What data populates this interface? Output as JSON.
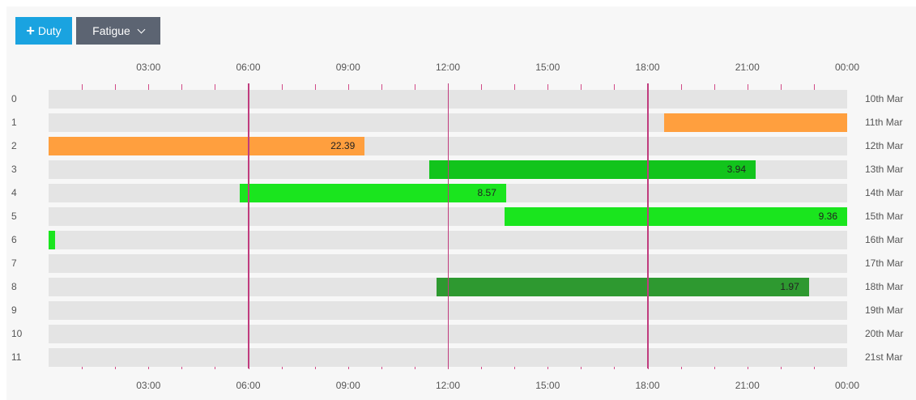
{
  "toolbar": {
    "duty_label": "Duty",
    "duty_plus": "+",
    "fatigue_label": "Fatigue"
  },
  "time_axis": {
    "labels": [
      "03:00",
      "06:00",
      "09:00",
      "12:00",
      "15:00",
      "18:00",
      "21:00",
      "00:00"
    ],
    "highlight_hours": [
      6,
      12,
      18
    ],
    "day_hours": 24
  },
  "rows": [
    {
      "index": "0",
      "date": "10th Mar"
    },
    {
      "index": "1",
      "date": "11th Mar"
    },
    {
      "index": "2",
      "date": "12th Mar"
    },
    {
      "index": "3",
      "date": "13th Mar"
    },
    {
      "index": "4",
      "date": "14th Mar"
    },
    {
      "index": "5",
      "date": "15th Mar"
    },
    {
      "index": "6",
      "date": "16th Mar"
    },
    {
      "index": "7",
      "date": "17th Mar"
    },
    {
      "index": "8",
      "date": "18th Mar"
    },
    {
      "index": "9",
      "date": "19th Mar"
    },
    {
      "index": "10",
      "date": "20th Mar"
    },
    {
      "index": "11",
      "date": "21st Mar"
    }
  ],
  "duties": [
    {
      "row": 1,
      "start_hour": 18.5,
      "end_hour": 24.0,
      "color": "#ff9f3e",
      "label": ""
    },
    {
      "row": 2,
      "start_hour": 0.0,
      "end_hour": 9.5,
      "color": "#ff9f3e",
      "label": "22.39"
    },
    {
      "row": 3,
      "start_hour": 11.45,
      "end_hour": 21.25,
      "color": "#12c41c",
      "label": "3.94"
    },
    {
      "row": 4,
      "start_hour": 5.75,
      "end_hour": 13.75,
      "color": "#1ae51e",
      "label": "8.57"
    },
    {
      "row": 5,
      "start_hour": 13.7,
      "end_hour": 24.0,
      "color": "#1ae51e",
      "label": "9.36"
    },
    {
      "row": 6,
      "start_hour": 0.0,
      "end_hour": 0.2,
      "color": "#1ae51e",
      "label": ""
    },
    {
      "row": 8,
      "start_hour": 11.65,
      "end_hour": 22.85,
      "color": "#2e9930",
      "label": "1.97"
    }
  ]
}
